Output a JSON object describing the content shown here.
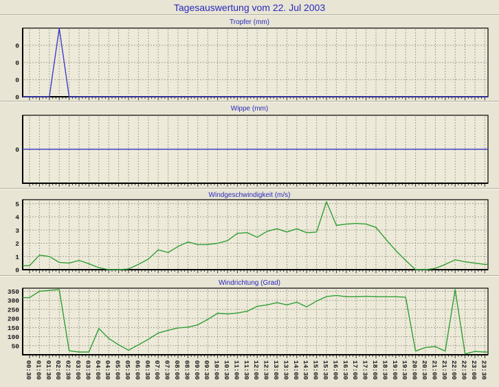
{
  "header": {
    "title": "Tagesauswertung vom 22. Jul 2003"
  },
  "x_axis": {
    "tick_labels": [
      "00:30",
      "01:00",
      "01:30",
      "02:00",
      "02:30",
      "03:00",
      "03:30",
      "04:00",
      "04:30",
      "05:00",
      "05:30",
      "06:00",
      "06:30",
      "07:00",
      "07:30",
      "08:00",
      "08:30",
      "09:00",
      "09:30",
      "10:00",
      "10:30",
      "11:00",
      "11:30",
      "12:00",
      "12:30",
      "13:00",
      "13:30",
      "14:00",
      "14:30",
      "15:00",
      "15:30",
      "16:00",
      "16:30",
      "17:00",
      "17:30",
      "18:00",
      "18:30",
      "19:00",
      "19:30",
      "20:00",
      "20:30",
      "21:00",
      "21:30",
      "22:00",
      "22:30",
      "23:00",
      "23:30"
    ]
  },
  "colors": {
    "page_bg": "#e8e5d5",
    "plot_bg": "#edead9",
    "grid": "#a29f91",
    "frame": "#000000",
    "title_blue": "#2828bb",
    "line_blue": "#3d3dc8",
    "line_green": "#2f9e34"
  },
  "chart_data": [
    {
      "type": "line",
      "title": "Tropfer (mm)",
      "color": "#3d3dc8",
      "ylim": [
        0,
        1.0
      ],
      "y_ticks": [
        {
          "v": 0,
          "label": "0"
        },
        {
          "v": 0.25,
          "label": "0"
        },
        {
          "v": 0.5,
          "label": "0"
        },
        {
          "v": 0.75,
          "label": "0"
        }
      ],
      "grid_y": [
        0.25,
        0.5,
        0.75
      ],
      "note": "all visible y tick labels read 0; single triangular spike peaking at 02:00 reaches top of scale, values given as fraction of full scale",
      "show_x_labels": false,
      "values": [
        0,
        0,
        0,
        1.0,
        0,
        0,
        0,
        0,
        0,
        0,
        0,
        0,
        0,
        0,
        0,
        0,
        0,
        0,
        0,
        0,
        0,
        0,
        0,
        0,
        0,
        0,
        0,
        0,
        0,
        0,
        0,
        0,
        0,
        0,
        0,
        0,
        0,
        0,
        0,
        0,
        0,
        0,
        0,
        0,
        0,
        0,
        0
      ]
    },
    {
      "type": "line",
      "title": "Wippe (mm)",
      "color": "#3d3dc8",
      "ylim": [
        -1,
        1
      ],
      "y_ticks": [
        {
          "v": 0,
          "label": "0"
        }
      ],
      "grid_y": [],
      "note": "flat line at 0 for the whole day",
      "show_x_labels": false,
      "values": [
        0,
        0,
        0,
        0,
        0,
        0,
        0,
        0,
        0,
        0,
        0,
        0,
        0,
        0,
        0,
        0,
        0,
        0,
        0,
        0,
        0,
        0,
        0,
        0,
        0,
        0,
        0,
        0,
        0,
        0,
        0,
        0,
        0,
        0,
        0,
        0,
        0,
        0,
        0,
        0,
        0,
        0,
        0,
        0,
        0,
        0,
        0
      ]
    },
    {
      "type": "line",
      "title": "Windgeschwindigkeit (m/s)",
      "color": "#2f9e34",
      "ylim": [
        0,
        5.3
      ],
      "y_ticks": [
        {
          "v": 0,
          "label": "0"
        },
        {
          "v": 1,
          "label": "1"
        },
        {
          "v": 2,
          "label": "2"
        },
        {
          "v": 3,
          "label": "3"
        },
        {
          "v": 4,
          "label": "4"
        },
        {
          "v": 5,
          "label": "5"
        }
      ],
      "grid_y": [
        1,
        2,
        3,
        4,
        5
      ],
      "show_x_labels": false,
      "values": [
        0.3,
        1.1,
        1.0,
        0.55,
        0.5,
        0.7,
        0.45,
        0.15,
        0,
        0,
        0.05,
        0.4,
        0.8,
        1.5,
        1.3,
        1.75,
        2.1,
        1.9,
        1.9,
        2.0,
        2.2,
        2.75,
        2.8,
        2.45,
        2.9,
        3.1,
        2.85,
        3.1,
        2.8,
        2.85,
        5.15,
        3.35,
        3.45,
        3.5,
        3.45,
        3.2,
        2.3,
        1.45,
        0.7,
        0,
        0,
        0.1,
        0.4,
        0.75,
        0.6,
        0.5,
        0.4
      ]
    },
    {
      "type": "line",
      "title": "Windrichtung (Grad)",
      "color": "#2f9e34",
      "ylim": [
        0,
        367
      ],
      "y_ticks": [
        {
          "v": 50,
          "label": "50"
        },
        {
          "v": 100,
          "label": "100"
        },
        {
          "v": 150,
          "label": "150"
        },
        {
          "v": 200,
          "label": "200"
        },
        {
          "v": 250,
          "label": "250"
        },
        {
          "v": 300,
          "label": "300"
        },
        {
          "v": 350,
          "label": "350"
        }
      ],
      "grid_y": [
        50,
        100,
        150,
        200,
        250,
        300,
        350
      ],
      "show_x_labels": true,
      "values": [
        315,
        350,
        355,
        360,
        22,
        15,
        15,
        145,
        90,
        55,
        25,
        55,
        85,
        120,
        135,
        148,
        152,
        165,
        195,
        229,
        225,
        230,
        240,
        267,
        275,
        287,
        275,
        290,
        264,
        296,
        321,
        327,
        320,
        320,
        322,
        320,
        320,
        320,
        317,
        20,
        40,
        45,
        20,
        360,
        5,
        18,
        15
      ]
    }
  ]
}
